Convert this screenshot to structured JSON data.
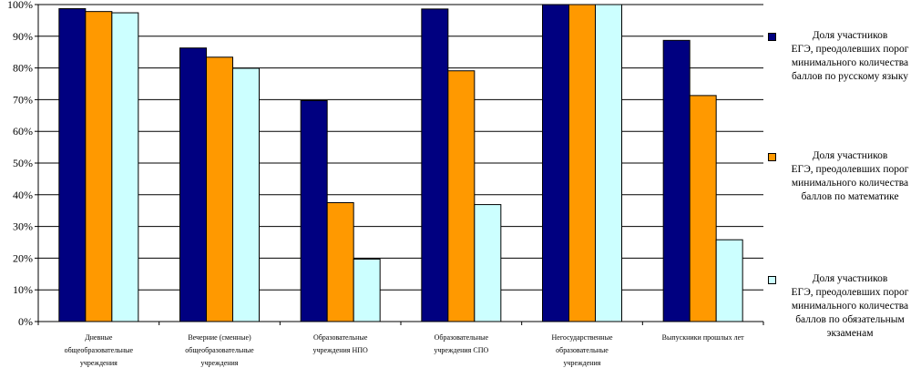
{
  "chart_data": {
    "type": "bar",
    "categories": [
      "Дневные\nобщеобразовательные\nучреждения",
      "Вечерние (сменные)\nобщеобразовательные\nучреждения",
      "Образовательные\nучреждения НПО",
      "Образовательные\nучреждения СПО",
      "Негосударственные\nобразовательные\nучреждения",
      "Выпускники прошлых лет"
    ],
    "series": [
      {
        "name": "Доля участников\nЕГЭ, преодолевших порог\nминимального количества\nбаллов по русскому языку",
        "color": "#000080",
        "values": [
          98.7,
          86.3,
          69.7,
          98.6,
          100,
          88.7
        ]
      },
      {
        "name": "Доля участников\nЕГЭ, преодолевших порог\nминимального количества\nбаллов по математике",
        "color": "#FF9900",
        "values": [
          97.8,
          83.4,
          37.5,
          79.1,
          100,
          71.3
        ]
      },
      {
        "name": "Доля участников\nЕГЭ, преодолевших порог\nминимального количества\nбаллов по обязательным\nэкзаменам",
        "color": "#CCFFFF",
        "values": [
          97.4,
          79.9,
          19.7,
          36.9,
          100,
          25.8
        ]
      }
    ],
    "yticks": [
      "0%",
      "10%",
      "20%",
      "30%",
      "40%",
      "50%",
      "60%",
      "70%",
      "80%",
      "90%",
      "100%"
    ],
    "ylim": [
      0,
      100
    ],
    "legend_position": "right",
    "grid": true
  }
}
